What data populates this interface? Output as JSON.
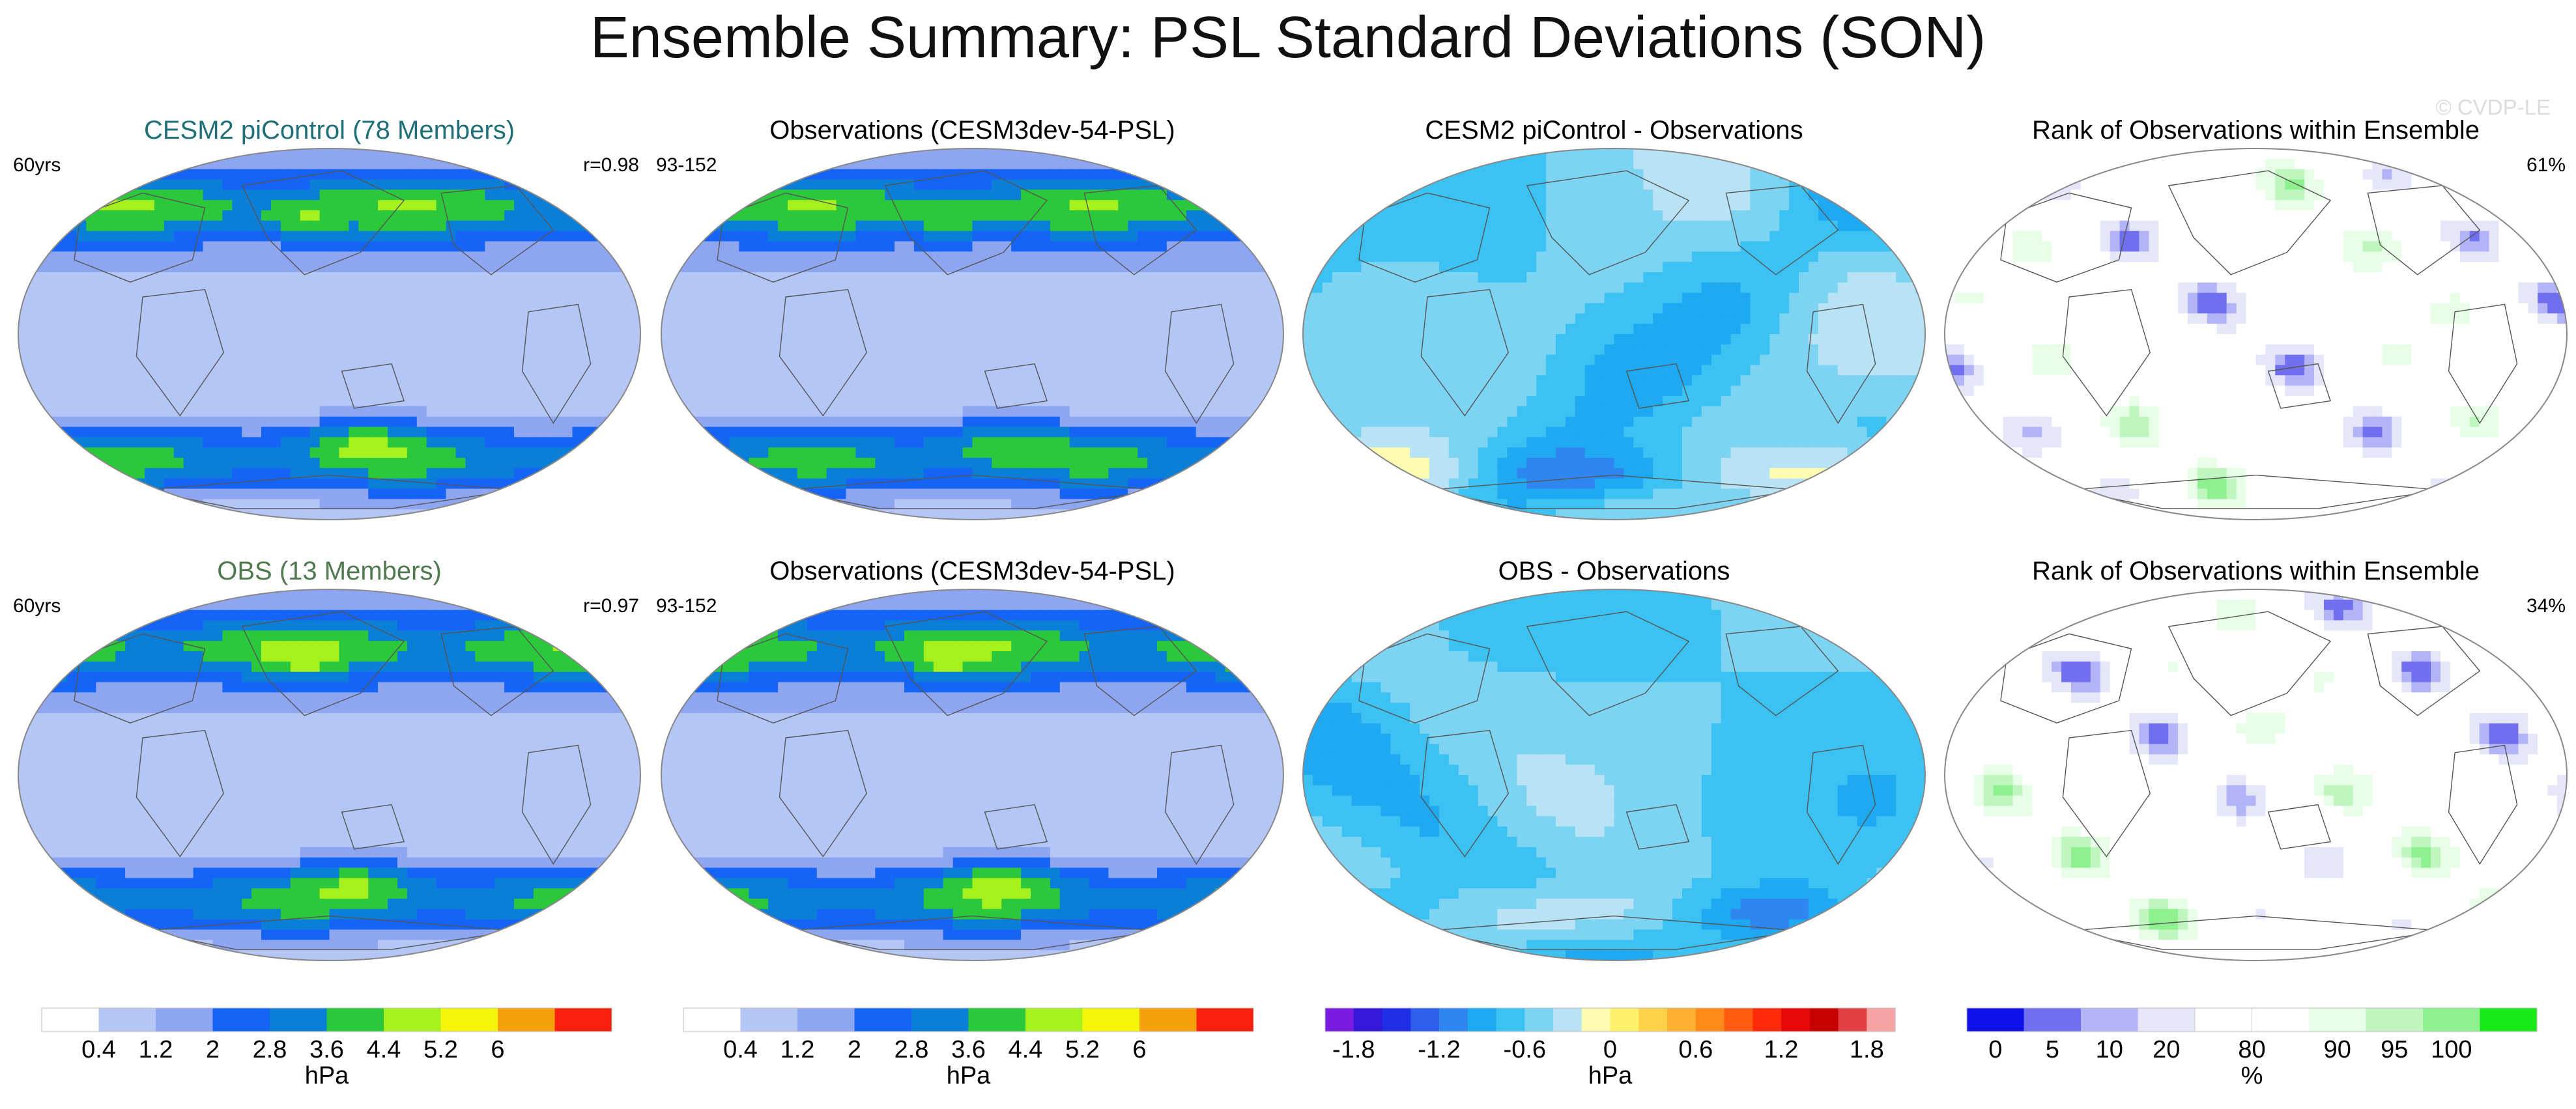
{
  "title": "Ensemble Summary: PSL Standard Deviations (SON)",
  "watermark": "© CVDP-LE",
  "chart_data": {
    "type": "heatmap",
    "layout": "2 rows x 4 columns of global map panels",
    "panels": [
      {
        "id": "cesm2_mean",
        "title": "CESM2 piControl (78 Members)",
        "title_color": "#1f6f78",
        "left_label": "60yrs",
        "right_label": "r=0.98",
        "field": "std",
        "scheme": "std",
        "seed": 11
      },
      {
        "id": "obs_ref_1",
        "title": "Observations (CESM3dev-54-PSL)",
        "title_color": "#000000",
        "left_label": "93-152",
        "right_label": "",
        "field": "std",
        "scheme": "std",
        "seed": 12
      },
      {
        "id": "cesm2_diff",
        "title": "CESM2 piControl - Observations",
        "title_color": "#000000",
        "left_label": "",
        "right_label": "",
        "field": "diff",
        "scheme": "diff",
        "seed": 13
      },
      {
        "id": "cesm2_rank",
        "title": "Rank of Observations within Ensemble",
        "title_color": "#000000",
        "left_label": "",
        "right_label": "61%",
        "field": "rank",
        "scheme": "rank",
        "seed": 14
      },
      {
        "id": "obs_mean",
        "title": "OBS (13 Members)",
        "title_color": "#4f7a4f",
        "left_label": "60yrs",
        "right_label": "r=0.97",
        "field": "std",
        "scheme": "std",
        "seed": 21
      },
      {
        "id": "obs_ref_2",
        "title": "Observations (CESM3dev-54-PSL)",
        "title_color": "#000000",
        "left_label": "93-152",
        "right_label": "",
        "field": "std",
        "scheme": "std",
        "seed": 22
      },
      {
        "id": "obs_diff",
        "title": "OBS - Observations",
        "title_color": "#000000",
        "left_label": "",
        "right_label": "",
        "field": "diff",
        "scheme": "diff",
        "seed": 23
      },
      {
        "id": "obs_rank",
        "title": "Rank of Observations within Ensemble",
        "title_color": "#000000",
        "left_label": "",
        "right_label": "34%",
        "field": "rank",
        "scheme": "rank",
        "seed": 24
      }
    ],
    "colorbars": [
      {
        "id": "std1",
        "scheme": "std",
        "units": "hPa",
        "colors": [
          "#ffffff",
          "#b4c6f5",
          "#8ea6f2",
          "#1564f5",
          "#0b7fd7",
          "#2ac83a",
          "#a6f01e",
          "#f5f50a",
          "#f6a10a",
          "#f9200f"
        ],
        "ticks": [
          "0.4",
          "1.2",
          "2",
          "2.8",
          "3.6",
          "4.4",
          "5.2",
          "6"
        ]
      },
      {
        "id": "std2",
        "scheme": "std",
        "units": "hPa",
        "colors": [
          "#ffffff",
          "#b4c6f5",
          "#8ea6f2",
          "#1564f5",
          "#0b7fd7",
          "#2ac83a",
          "#a6f01e",
          "#f5f50a",
          "#f6a10a",
          "#f9200f"
        ],
        "ticks": [
          "0.4",
          "1.2",
          "2",
          "2.8",
          "3.6",
          "4.4",
          "5.2",
          "6"
        ]
      },
      {
        "id": "diff",
        "scheme": "diff",
        "units": "hPa",
        "colors": [
          "#7a1ce0",
          "#3418d8",
          "#1f2fe6",
          "#2f5fea",
          "#2f86ef",
          "#1ea9f2",
          "#3cc2f2",
          "#7cd3f2",
          "#b8e3f5",
          "#fffbb0",
          "#fff26a",
          "#ffd24a",
          "#ffb030",
          "#ff8a1a",
          "#ff5a10",
          "#ff2a0a",
          "#e80a0a",
          "#c70000",
          "#e04040",
          "#f7a3a3"
        ],
        "ticks": [
          "-1.8",
          "-1.2",
          "-0.6",
          "0",
          "0.6",
          "1.2",
          "1.8"
        ]
      },
      {
        "id": "rank",
        "scheme": "rank",
        "units": "%",
        "colors": [
          "#0f0fe8",
          "#6f6ff0",
          "#b3b3f7",
          "#e6e6fb",
          "#ffffff",
          "#ffffff",
          "#e6ffe6",
          "#bff6bf",
          "#8ef08e",
          "#18ea18"
        ],
        "ticks": [
          "0",
          "5",
          "10",
          "20",
          "80",
          "90",
          "95",
          "100"
        ]
      }
    ]
  }
}
